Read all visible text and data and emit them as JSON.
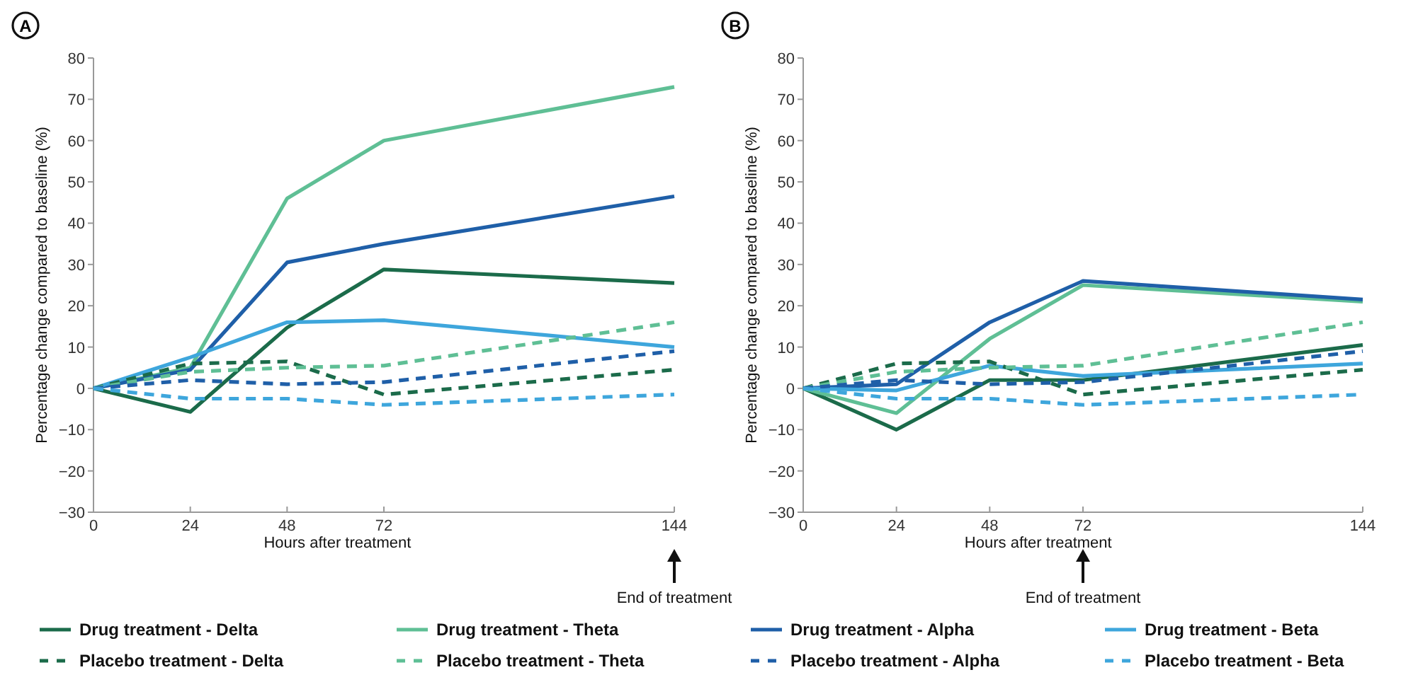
{
  "chart_data": [
    {
      "type": "line",
      "title": "A",
      "xlabel": "Hours after treatment",
      "ylabel": "Percentage change compared to baseline (%)",
      "x": [
        0,
        24,
        48,
        72,
        144
      ],
      "xlim": [
        0,
        144
      ],
      "xticks": [
        0,
        24,
        48,
        72,
        144
      ],
      "ylim": [
        -30,
        80
      ],
      "yticks": [
        -30,
        -20,
        -10,
        0,
        10,
        20,
        30,
        40,
        50,
        60,
        70,
        80
      ],
      "grid": false,
      "legend": "bottom",
      "marker": "none",
      "annotations": [
        "End of treatment"
      ],
      "series": [
        {
          "name": "Drug treatment - Delta",
          "color": "#1b6b4a",
          "line_style": "solid",
          "values": [
            0,
            -5.7,
            14.7,
            28.8,
            25.5
          ]
        },
        {
          "name": "Drug treatment - Theta",
          "color": "#5fbf95",
          "line_style": "solid",
          "values": [
            0,
            5,
            46,
            60,
            73
          ]
        },
        {
          "name": "Drug treatment - Alpha",
          "color": "#1f5fa8",
          "line_style": "solid",
          "values": [
            0,
            4.5,
            30.5,
            35,
            46.5
          ]
        },
        {
          "name": "Drug treatment - Beta",
          "color": "#3ea6dc",
          "line_style": "solid",
          "values": [
            0,
            7.5,
            16,
            16.5,
            10
          ]
        },
        {
          "name": "Placebo treatment - Delta",
          "color": "#1b6b4a",
          "line_style": "dashed",
          "values": [
            0,
            6,
            6.5,
            -1.5,
            4.5
          ]
        },
        {
          "name": "Placebo treatment - Theta",
          "color": "#5fbf95",
          "line_style": "dashed",
          "values": [
            0,
            4,
            5,
            5.5,
            16
          ]
        },
        {
          "name": "Placebo treatment - Alpha",
          "color": "#1f5fa8",
          "line_style": "dashed",
          "values": [
            0,
            2,
            1,
            1.5,
            9
          ]
        },
        {
          "name": "Placebo treatment - Beta",
          "color": "#3ea6dc",
          "line_style": "dashed",
          "values": [
            0,
            -2.5,
            -2.5,
            -4,
            -1.5
          ]
        }
      ]
    },
    {
      "type": "line",
      "title": "B",
      "xlabel": "Hours after treatment",
      "ylabel": "Percentage change compared to baseline (%)",
      "x": [
        0,
        24,
        48,
        72,
        144
      ],
      "xlim": [
        0,
        144
      ],
      "xticks": [
        0,
        24,
        48,
        72,
        144
      ],
      "ylim": [
        -30,
        80
      ],
      "yticks": [
        -30,
        -20,
        -10,
        0,
        10,
        20,
        30,
        40,
        50,
        60,
        70,
        80
      ],
      "grid": false,
      "marker": "none",
      "annotations": [
        "End of treatment"
      ],
      "series": [
        {
          "color": "#1b6b4a",
          "line_style": "solid",
          "values": [
            0,
            -10,
            2,
            2,
            10.5
          ]
        },
        {
          "color": "#5fbf95",
          "line_style": "solid",
          "values": [
            0,
            -6,
            12,
            25,
            21
          ]
        },
        {
          "color": "#1f5fa8",
          "line_style": "solid",
          "values": [
            0,
            1,
            16,
            26,
            21.5
          ]
        },
        {
          "color": "#3ea6dc",
          "line_style": "solid",
          "values": [
            0,
            -0.5,
            5.5,
            3,
            6
          ]
        },
        {
          "color": "#1b6b4a",
          "line_style": "dashed",
          "values": [
            0,
            6,
            6.5,
            -1.5,
            4.5
          ]
        },
        {
          "color": "#5fbf95",
          "line_style": "dashed",
          "values": [
            0,
            4,
            5,
            5.5,
            16
          ]
        },
        {
          "color": "#1f5fa8",
          "line_style": "dashed",
          "values": [
            0,
            2,
            1,
            1.5,
            9
          ]
        },
        {
          "color": "#3ea6dc",
          "line_style": "dashed",
          "values": [
            0,
            -2.5,
            -2.5,
            -4,
            -1.5
          ]
        }
      ]
    }
  ]
}
